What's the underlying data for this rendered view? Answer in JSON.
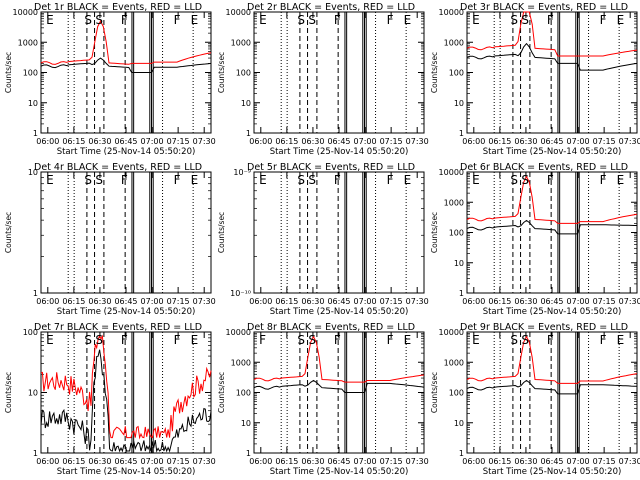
{
  "figure": {
    "xtick_labels": [
      "06:00",
      "06:15",
      "06:30",
      "06:45",
      "07:00",
      "07:15",
      "07:30"
    ],
    "xlabel": "Start Time (25-Nov-14 05:50:20)",
    "ylabel": "Counts/sec",
    "colors": {
      "events": "#000000",
      "lld": "#ff0000",
      "axis": "#000000",
      "background": "#ffffff"
    }
  },
  "chart_data": [
    {
      "type": "line",
      "title": "Det 1r BLACK = Events, RED = LLD",
      "yscale": "log",
      "ylim": [
        1,
        10000
      ],
      "ytick_labels": [
        "1",
        "10",
        "100",
        "1000",
        "10000"
      ],
      "marker_letters": [
        "E",
        "S",
        "S",
        "F",
        "F",
        "E"
      ],
      "series": [
        {
          "name": "Events",
          "color": "#000000",
          "shape": "detector",
          "values": {
            "pre": 180,
            "flare_peak": 300,
            "flat": 150,
            "post_rise": 200,
            "dip": 100
          }
        },
        {
          "name": "LLD",
          "color": "#ff0000",
          "shape": "flare",
          "values": {
            "pre": 230,
            "flare_peak": 5000,
            "flat": 220,
            "post_rise": 450,
            "dip": 200
          }
        }
      ]
    },
    {
      "type": "line",
      "title": "Det 2r BLACK = Events, RED = LLD",
      "yscale": "log",
      "ylim": [
        1,
        10000
      ],
      "ytick_labels": [
        "1",
        "10",
        "100",
        "1000",
        "10000"
      ],
      "marker_letters": [
        "E",
        "S",
        "S",
        "F",
        "F",
        "E"
      ],
      "series": []
    },
    {
      "type": "line",
      "title": "Det 3r BLACK = Events, RED = LLD",
      "yscale": "log",
      "ylim": [
        1,
        10000
      ],
      "ytick_labels": [
        "1",
        "10",
        "100",
        "1000",
        "10000"
      ],
      "marker_letters": [
        "E",
        "S",
        "S",
        "F",
        "F",
        "E"
      ],
      "series": [
        {
          "name": "Events",
          "color": "#000000",
          "shape": "detector",
          "values": {
            "pre": 350,
            "flare_peak": 900,
            "flat": 120,
            "post_rise": 200,
            "dip": 200
          }
        },
        {
          "name": "LLD",
          "color": "#ff0000",
          "shape": "flare",
          "values": {
            "pre": 700,
            "flare_peak": 20000,
            "flat": 350,
            "post_rise": 550,
            "dip": 350
          }
        }
      ]
    },
    {
      "type": "line",
      "title": "Det 4r BLACK = Events, RED = LLD",
      "yscale": "log",
      "ylim": [
        1,
        10
      ],
      "ytick_labels": [
        "1",
        "10"
      ],
      "marker_letters": [
        "E",
        "S",
        "S",
        "F",
        "F",
        "E"
      ],
      "series": []
    },
    {
      "type": "line",
      "title": "Det 5r BLACK = Events, RED = LLD",
      "yscale": "log",
      "ylim": [
        1e-10,
        1e-09
      ],
      "ytick_labels": [
        "10⁻⁹",
        "10⁻¹⁰"
      ],
      "marker_letters": [
        "E",
        "S",
        "S",
        "F",
        "F",
        "E"
      ],
      "series": []
    },
    {
      "type": "line",
      "title": "Det 6r BLACK = Events, RED = LLD",
      "yscale": "log",
      "ylim": [
        1,
        10000
      ],
      "ytick_labels": [
        "1",
        "10",
        "100",
        "1000",
        "10000"
      ],
      "marker_letters": [
        "E",
        "S",
        "S",
        "F",
        "F",
        "E"
      ],
      "series": [
        {
          "name": "Events",
          "color": "#000000",
          "shape": "detector",
          "values": {
            "pre": 150,
            "flare_peak": 250,
            "flat": 180,
            "post_rise": 170,
            "dip": 90
          }
        },
        {
          "name": "LLD",
          "color": "#ff0000",
          "shape": "flare",
          "values": {
            "pre": 300,
            "flare_peak": 7000,
            "flat": 230,
            "post_rise": 400,
            "dip": 200
          }
        }
      ]
    },
    {
      "type": "line",
      "title": "Det 7r BLACK = Events, RED = LLD",
      "yscale": "log",
      "ylim": [
        1,
        100
      ],
      "ytick_labels": [
        "1",
        "10",
        "100"
      ],
      "marker_letters": [
        "E",
        "S",
        "S",
        "F",
        "F",
        "E"
      ],
      "series": [
        {
          "name": "Events",
          "color": "#000000",
          "shape": "noisy",
          "values": {
            "pre": 2,
            "flare_peak": 40,
            "flat": 1.5,
            "post_rise": 5,
            "dip": 1.2
          }
        },
        {
          "name": "LLD",
          "color": "#ff0000",
          "shape": "noisy",
          "values": {
            "pre": 8,
            "flare_peak": 90,
            "flat": 3,
            "post_rise": 20,
            "dip": 2
          }
        }
      ]
    },
    {
      "type": "line",
      "title": "Det 8r BLACK = Events, RED = LLD",
      "yscale": "log",
      "ylim": [
        1,
        10000
      ],
      "ytick_labels": [
        "1",
        "10",
        "100",
        "1000",
        "10000"
      ],
      "marker_letters": [
        "F",
        "S",
        "S",
        "F",
        "F",
        "E"
      ],
      "series": [
        {
          "name": "Events",
          "color": "#000000",
          "shape": "detector",
          "values": {
            "pre": 160,
            "flare_peak": 250,
            "flat": 200,
            "post_rise": 150,
            "dip": 100
          }
        },
        {
          "name": "LLD",
          "color": "#ff0000",
          "shape": "flare",
          "values": {
            "pre": 300,
            "flare_peak": 7000,
            "flat": 250,
            "post_rise": 380,
            "dip": 220
          }
        }
      ]
    },
    {
      "type": "line",
      "title": "Det 9r BLACK = Events, RED = LLD",
      "yscale": "log",
      "ylim": [
        1,
        10000
      ],
      "ytick_labels": [
        "1",
        "10",
        "100",
        "1000",
        "10000"
      ],
      "marker_letters": [
        "E",
        "S",
        "S",
        "F",
        "F",
        "E"
      ],
      "series": [
        {
          "name": "Events",
          "color": "#000000",
          "shape": "detector",
          "values": {
            "pre": 150,
            "flare_peak": 250,
            "flat": 180,
            "post_rise": 160,
            "dip": 90
          }
        },
        {
          "name": "LLD",
          "color": "#ff0000",
          "shape": "flare",
          "values": {
            "pre": 300,
            "flare_peak": 7000,
            "flat": 240,
            "post_rise": 420,
            "dip": 200
          }
        }
      ]
    }
  ]
}
